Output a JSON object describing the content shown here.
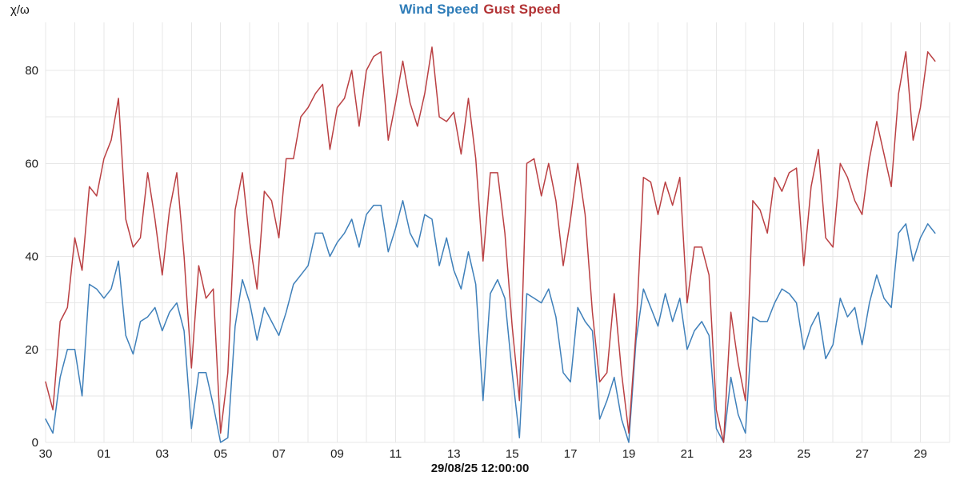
{
  "page": {
    "background": "#ffffff"
  },
  "legend": {
    "items": [
      {
        "label": "Wind Speed",
        "color": "#2e7cb8"
      },
      {
        "label": "Gust Speed",
        "color": "#b23234"
      }
    ]
  },
  "y_axis": {
    "label": "χ/ω",
    "ticks": [
      0,
      20,
      40,
      60,
      80
    ],
    "max": 90
  },
  "x_axis": {
    "tick_labels": [
      "30",
      "01",
      "03",
      "05",
      "07",
      "09",
      "11",
      "13",
      "15",
      "17",
      "19",
      "21",
      "23",
      "25",
      "27",
      "29"
    ],
    "tick_day_indices": [
      0,
      2,
      4,
      6,
      8,
      10,
      12,
      14,
      16,
      18,
      20,
      22,
      24,
      26,
      28,
      30
    ],
    "total_days": 31,
    "footer_label": "29/08/25 12:00:00"
  },
  "chart_data": {
    "type": "line",
    "title": "Wind Speed Gust Speed",
    "ylabel": "χ/ω",
    "xlabel": "29/08/25 12:00:00",
    "x_description": "Daily dates from 30 Aug to 29 Sep, data sampled every 6 hours, labels every 2 days",
    "x_tick_labels": [
      "30",
      "01",
      "03",
      "05",
      "07",
      "09",
      "11",
      "13",
      "15",
      "17",
      "19",
      "21",
      "23",
      "25",
      "27",
      "29"
    ],
    "ylim": [
      0,
      90
    ],
    "y_ticks": [
      0,
      20,
      40,
      60,
      80
    ],
    "grid": true,
    "legend_position": "top-center",
    "points_per_day": 4,
    "series": [
      {
        "name": "Wind Speed",
        "color": "#3f80ba",
        "values": [
          5,
          2,
          14,
          20,
          20,
          10,
          34,
          33,
          31,
          33,
          39,
          23,
          19,
          26,
          27,
          29,
          24,
          28,
          30,
          24,
          3,
          15,
          15,
          8,
          0,
          1,
          25,
          35,
          30,
          22,
          29,
          26,
          23,
          28,
          34,
          36,
          38,
          45,
          45,
          40,
          43,
          45,
          48,
          42,
          49,
          51,
          51,
          41,
          46,
          52,
          45,
          42,
          49,
          48,
          38,
          44,
          37,
          33,
          41,
          34,
          9,
          32,
          35,
          31,
          15,
          1,
          32,
          31,
          30,
          33,
          27,
          15,
          13,
          29,
          26,
          24,
          5,
          9,
          14,
          5,
          0,
          22,
          33,
          29,
          25,
          32,
          26,
          31,
          20,
          24,
          26,
          23,
          3,
          0,
          14,
          6,
          2,
          27,
          26,
          26,
          30,
          33,
          32,
          30,
          20,
          25,
          28,
          18,
          21,
          31,
          27,
          29,
          21,
          30,
          36,
          31,
          29,
          45,
          47,
          39,
          44,
          47,
          45
        ]
      },
      {
        "name": "Gust Speed",
        "color": "#ba4043",
        "values": [
          13,
          7,
          26,
          29,
          44,
          37,
          55,
          53,
          61,
          65,
          74,
          48,
          42,
          44,
          58,
          48,
          36,
          50,
          58,
          40,
          16,
          38,
          31,
          33,
          2,
          15,
          50,
          58,
          43,
          33,
          54,
          52,
          44,
          61,
          61,
          70,
          72,
          75,
          77,
          63,
          72,
          74,
          80,
          68,
          80,
          83,
          84,
          65,
          73,
          82,
          73,
          68,
          75,
          85,
          70,
          69,
          71,
          62,
          74,
          61,
          39,
          58,
          58,
          45,
          25,
          9,
          60,
          61,
          53,
          60,
          52,
          38,
          48,
          60,
          49,
          28,
          13,
          15,
          32,
          15,
          2,
          24,
          57,
          56,
          49,
          56,
          51,
          57,
          30,
          42,
          42,
          36,
          7,
          0,
          28,
          17,
          9,
          52,
          50,
          45,
          57,
          54,
          58,
          59,
          38,
          55,
          63,
          44,
          42,
          60,
          57,
          52,
          49,
          61,
          69,
          62,
          55,
          75,
          84,
          65,
          72,
          84,
          82
        ]
      }
    ],
    "colors": {
      "grid": "#e7e7e7",
      "tick_text": "#1a1a1a",
      "background": "#ffffff"
    }
  }
}
